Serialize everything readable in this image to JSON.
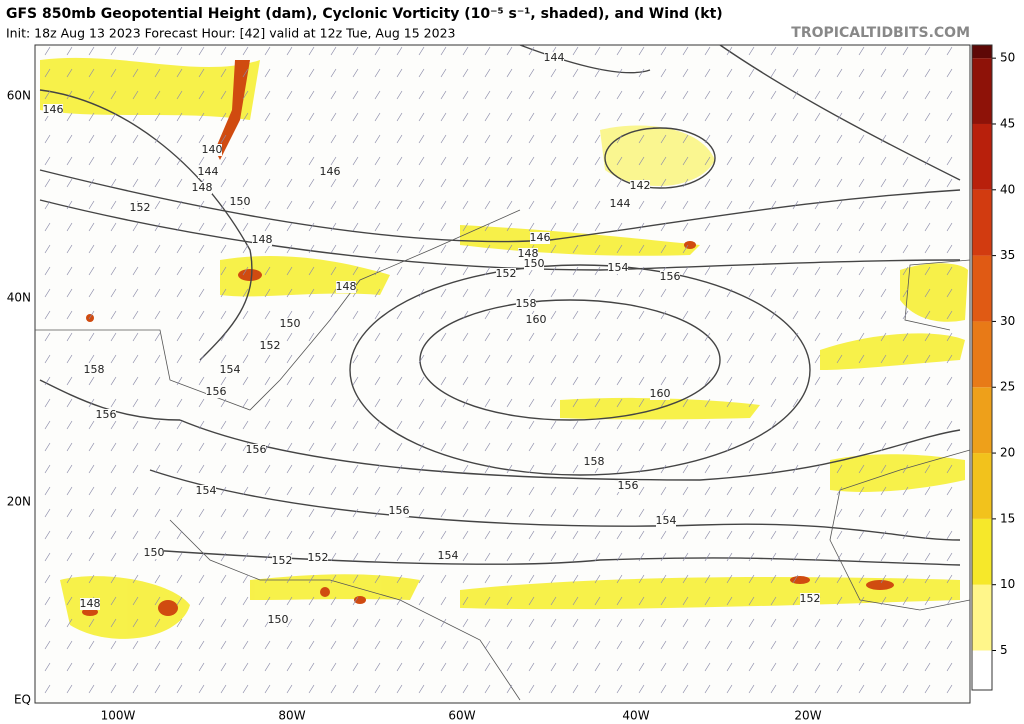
{
  "header": {
    "title": "GFS 850mb Geopotential Height (dam), Cyclonic Vorticity (10⁻⁵ s⁻¹, shaded), and Wind (kt)",
    "init": "Init: 18z Aug 13 2023   Forecast Hour: [42]   valid at 12z Tue, Aug 15 2023",
    "site": "TROPICALTIDBITS.COM"
  },
  "map": {
    "lat_labels": [
      "60N",
      "40N",
      "20N",
      "EQ"
    ],
    "lon_labels": [
      "100W",
      "80W",
      "60W",
      "40W",
      "20W"
    ],
    "contour_labels": [
      "146",
      "140",
      "144",
      "148",
      "152",
      "150",
      "148",
      "146",
      "144",
      "142",
      "144",
      "146",
      "148",
      "150",
      "152",
      "154",
      "156",
      "158",
      "160",
      "160",
      "158",
      "156",
      "154",
      "152",
      "150",
      "156",
      "154",
      "156",
      "152",
      "148",
      "150",
      "152",
      "154",
      "156",
      "158",
      "156",
      "154",
      "152",
      "150",
      "148"
    ]
  },
  "colorbar": {
    "lim": [
      2,
      51
    ],
    "ticks": [
      5,
      10,
      15,
      20,
      25,
      30,
      35,
      40,
      45,
      50
    ]
  }
}
